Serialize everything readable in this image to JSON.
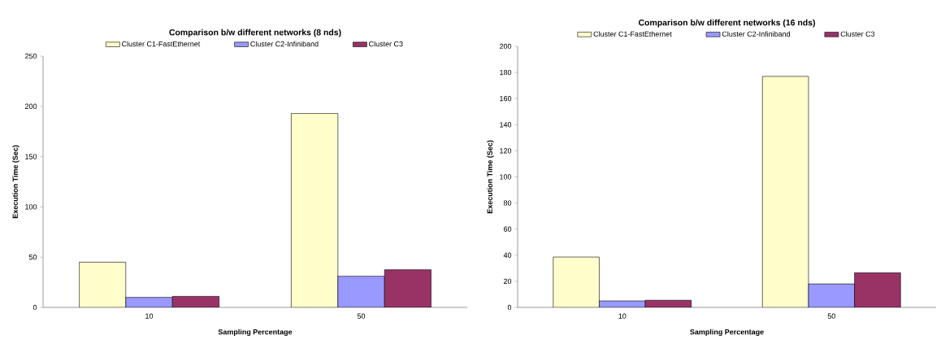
{
  "chart_data": [
    {
      "type": "bar",
      "title": "Comparison b/w different networks (8 nds)",
      "xlabel": "Sampling Percentage",
      "ylabel": "Execution Time (Sec)",
      "categories": [
        "10",
        "50"
      ],
      "legend": "top",
      "ylim": [
        0,
        250
      ],
      "yticks": [
        0,
        50,
        100,
        150,
        200,
        250
      ],
      "series": [
        {
          "name": "Cluster C1-FastEthernet",
          "color": "#ffffcc",
          "values": [
            45,
            193
          ]
        },
        {
          "name": "Cluster C2-Infiniband",
          "color": "#9999ff",
          "values": [
            10,
            31
          ]
        },
        {
          "name": "Cluster C3",
          "color": "#993366",
          "values": [
            11,
            37.5
          ]
        }
      ]
    },
    {
      "type": "bar",
      "title": "Comparison b/w different networks (16 nds)",
      "xlabel": "Sampling Percentage",
      "ylabel": "Execution Time (Sec)",
      "categories": [
        "10",
        "50"
      ],
      "legend": "top",
      "ylim": [
        0,
        200
      ],
      "yticks": [
        0,
        20,
        40,
        60,
        80,
        100,
        120,
        140,
        160,
        180,
        200
      ],
      "series": [
        {
          "name": "Cluster C1-FastEthernet",
          "color": "#ffffcc",
          "values": [
            38.6,
            177
          ]
        },
        {
          "name": "Cluster C2-Infiniband",
          "color": "#9999ff",
          "values": [
            5,
            18
          ]
        },
        {
          "name": "Cluster C3",
          "color": "#993366",
          "values": [
            5.5,
            26.6
          ]
        }
      ]
    }
  ]
}
